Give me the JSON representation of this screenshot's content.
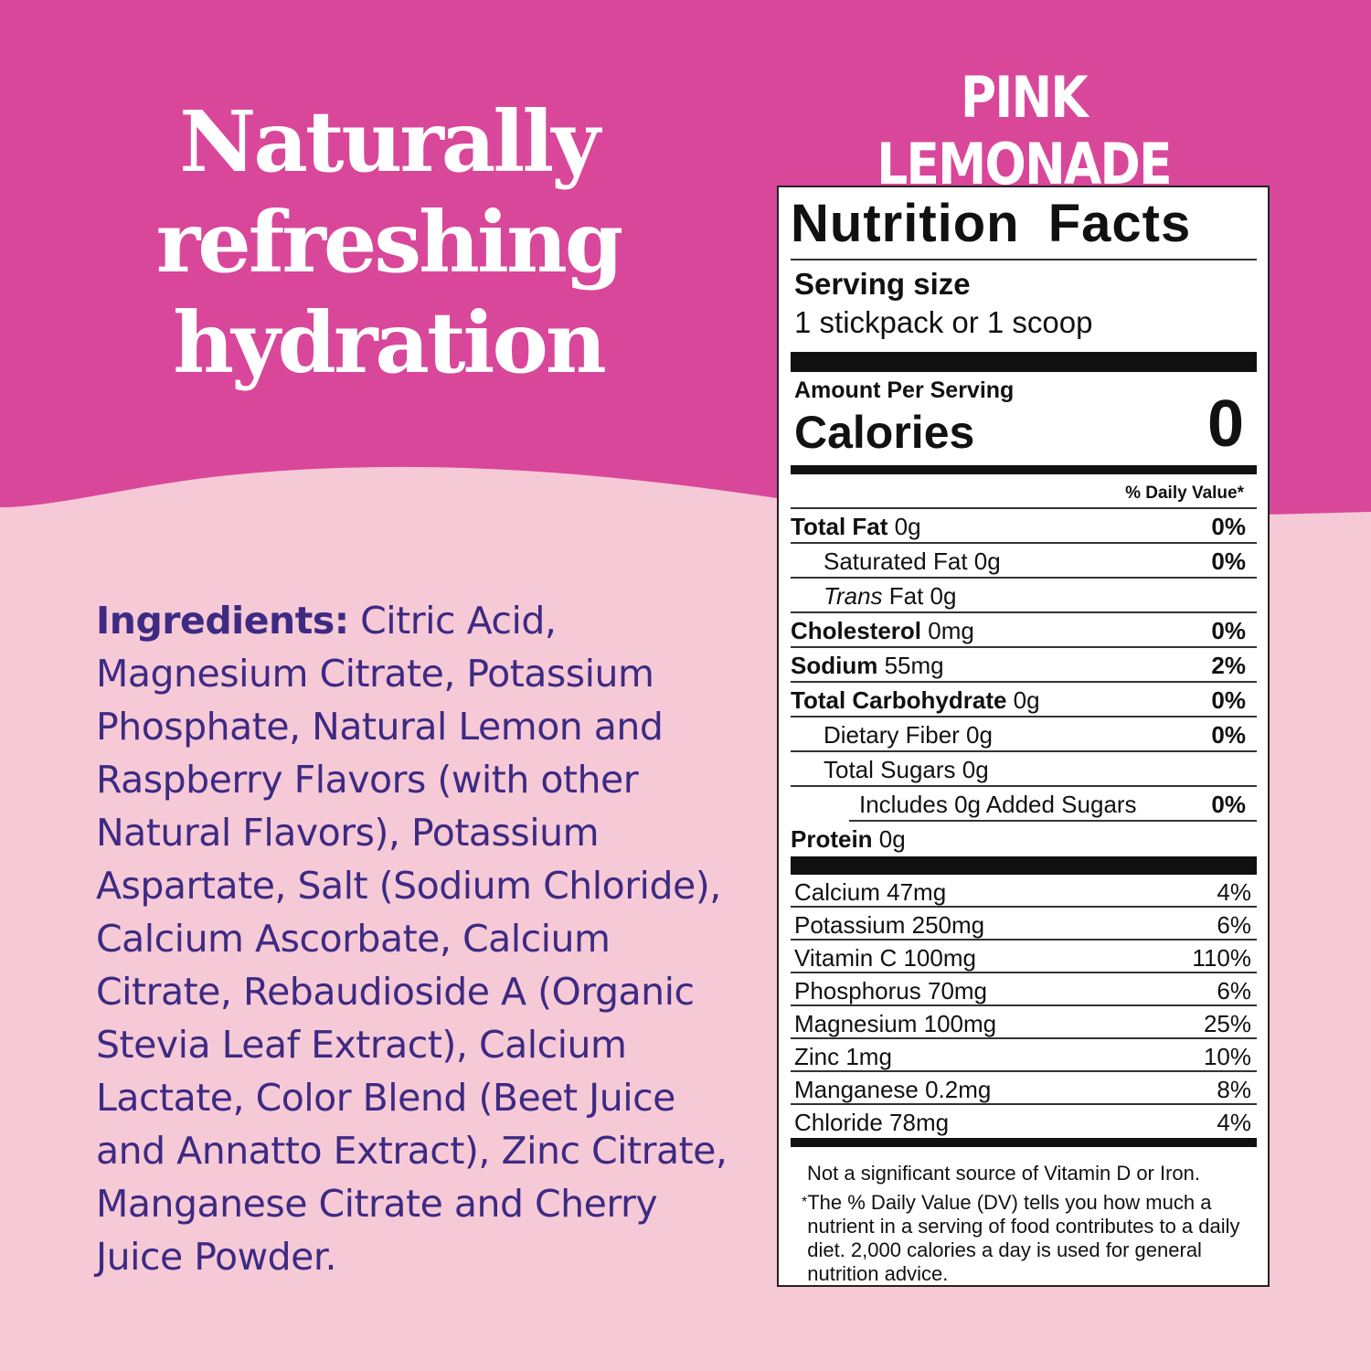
{
  "colors": {
    "top_bg": "#D9479A",
    "bottom_bg": "#F6C9D6",
    "ingredient_text": "#3D2A83"
  },
  "headline": [
    "Naturally",
    "refreshing",
    "hydration"
  ],
  "flavor": "PINK LEMONADE",
  "ingredients": {
    "label": "Ingredients:",
    "text": " Citric Acid, Magnesium Citrate, Potassium Phosphate, Natural Lemon and Raspberry Flavors (with other Natural Flavors), Potassium Aspartate, Salt (Sodium Chloride), Calcium Ascorbate, Calcium Citrate, Rebaudioside A (Organic Stevia Leaf Extract), Calcium Lactate, Color Blend (Beet Juice and Annatto Extract), Zinc Citrate, Manganese Citrate and Cherry Juice Powder."
  },
  "label": {
    "title": "Nutrition Facts",
    "serving_heading": "Serving size",
    "serving_value": "1 stickpack or 1 scoop",
    "amount_per_serving": "Amount Per Serving",
    "calories_label": "Calories",
    "calories_value": "0",
    "dv_header": "% Daily Value*",
    "nutrients": [
      {
        "bold": "Total Fat",
        "italic": "",
        "rest": " 0g",
        "dv": "0%",
        "indent": 0
      },
      {
        "bold": "",
        "italic": "",
        "rest": "Saturated Fat 0g",
        "dv": "0%",
        "indent": 1
      },
      {
        "bold": "",
        "italic": "Trans",
        "rest": " Fat 0g",
        "dv": "",
        "indent": 1
      },
      {
        "bold": "Cholesterol",
        "italic": "",
        "rest": " 0mg",
        "dv": "0%",
        "indent": 0
      },
      {
        "bold": "Sodium",
        "italic": "",
        "rest": " 55mg",
        "dv": "2%",
        "indent": 0
      },
      {
        "bold": "Total Carbohydrate",
        "italic": "",
        "rest": " 0g",
        "dv": "0%",
        "indent": 0
      },
      {
        "bold": "",
        "italic": "",
        "rest": "Dietary Fiber 0g",
        "dv": "0%",
        "indent": 1
      },
      {
        "bold": "",
        "italic": "",
        "rest": "Total Sugars 0g",
        "dv": "",
        "indent": 1
      },
      {
        "bold": "",
        "italic": "",
        "rest": "Includes 0g Added Sugars",
        "dv": "0%",
        "indent": 2
      },
      {
        "bold": "Protein",
        "italic": "",
        "rest": " 0g",
        "dv": "",
        "indent": 0
      }
    ],
    "vitamins": [
      {
        "name": "Calcium 47mg",
        "dv": "4%"
      },
      {
        "name": "Potassium 250mg",
        "dv": "6%"
      },
      {
        "name": "Vitamin C 100mg",
        "dv": "110%"
      },
      {
        "name": "Phosphorus 70mg",
        "dv": "6%"
      },
      {
        "name": "Magnesium 100mg",
        "dv": "25%"
      },
      {
        "name": "Zinc 1mg",
        "dv": "10%"
      },
      {
        "name": "Manganese 0.2mg",
        "dv": "8%"
      },
      {
        "name": "Chloride 78mg",
        "dv": "4%"
      }
    ],
    "note": "Not a significant source of Vitamin D or Iron.",
    "footnote_mark": "*",
    "footnote": "The % Daily Value (DV) tells you how much a nutrient in a serving of food contributes to a daily diet. 2,000 calories a day is used for general nutrition advice."
  }
}
